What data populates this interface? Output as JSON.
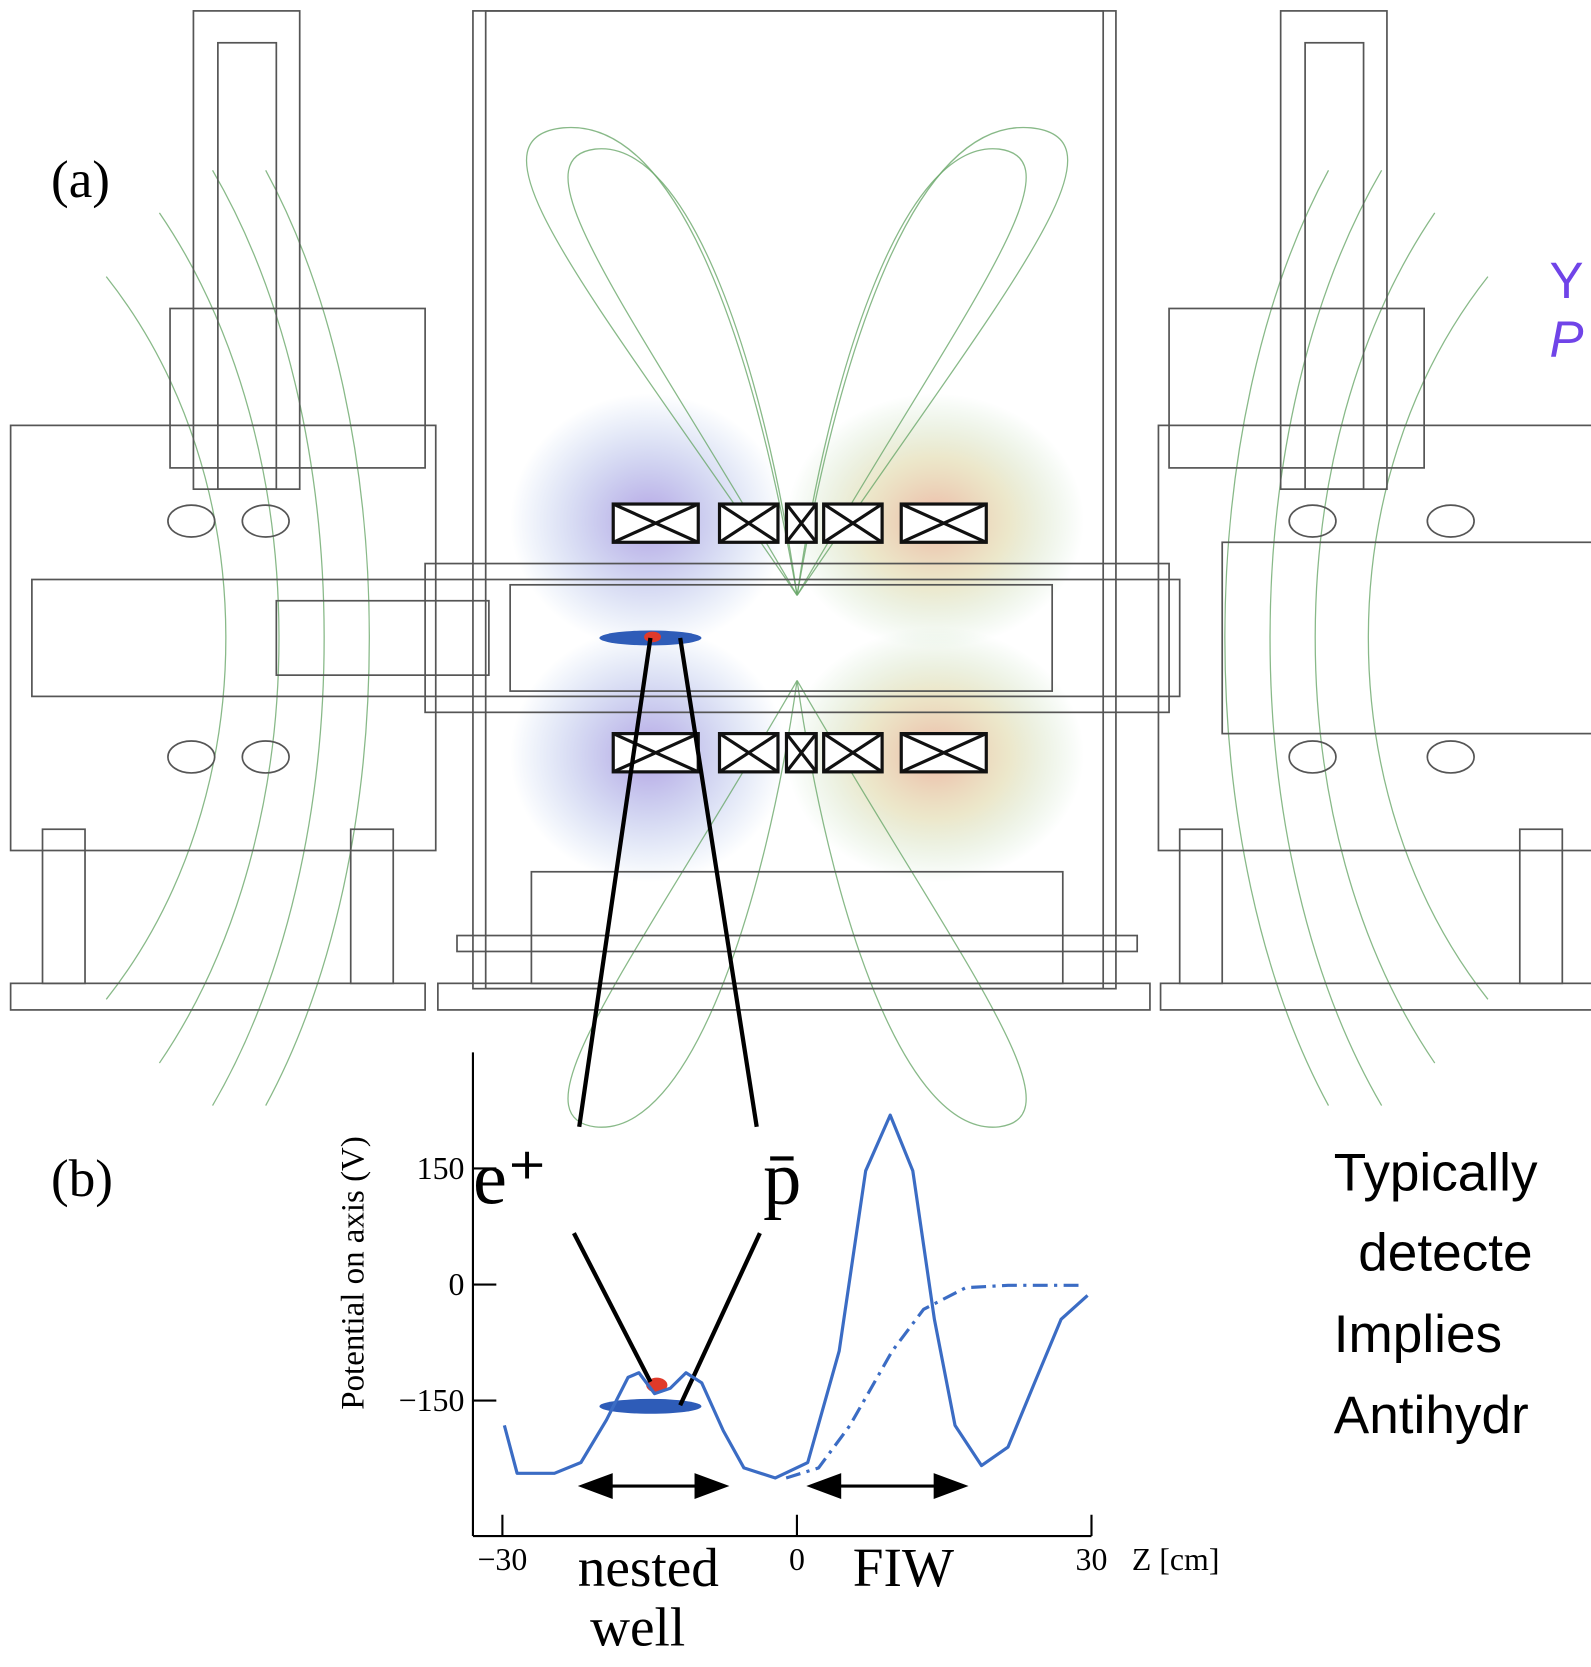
{
  "panel_labels": [
    "(a)",
    "(b)"
  ],
  "chart_data": {
    "type": "line",
    "xlabel": "Z [cm]",
    "ylabel": "Potential on axis (V)",
    "xlim": [
      -33,
      30
    ],
    "ylim": [
      -325,
      300
    ],
    "xticks": [
      {
        "value": -30,
        "label": "−30"
      },
      0,
      30
    ],
    "yticks": [
      150,
      0,
      {
        "value": -150,
        "label": "−150"
      }
    ],
    "series": [
      {
        "color": "#3b6cc4",
        "style": "solid",
        "x": [
          -29.8,
          -28.5,
          -24.7,
          -22,
          -19.4,
          -17.2,
          -16.1,
          -14.5,
          -12.9,
          -11.3,
          -9.7,
          -7.5,
          -5.4,
          -2.2,
          1.1,
          4.3,
          7,
          9.5,
          11.8,
          14,
          16.1,
          18.8,
          21.5,
          24.2,
          26.9,
          29.6
        ],
        "values": [
          -182,
          -244,
          -244,
          -230,
          -175,
          -120,
          -114,
          -141,
          -134,
          -114,
          -127,
          -189,
          -237,
          -250,
          -230,
          -86,
          147,
          219,
          147,
          -45,
          -182,
          -234,
          -210,
          -127,
          -45,
          -14
        ]
      },
      {
        "color": "#3b6cc4",
        "style": "dashdot",
        "x": [
          -1.1,
          2.2,
          5.4,
          9.7,
          12.9,
          17.2,
          21.5,
          29
        ],
        "values": [
          -250,
          -237,
          -182,
          -86,
          -32,
          -4,
          -1,
          -1
        ]
      }
    ],
    "annotations": [
      "e⁺",
      "p̄",
      "nested",
      "well",
      "FIW"
    ]
  },
  "slide_text": {
    "heading": [
      "Y",
      "P"
    ],
    "lines": [
      "Typically",
      "detecte",
      "Implies",
      "Antihydr"
    ]
  }
}
